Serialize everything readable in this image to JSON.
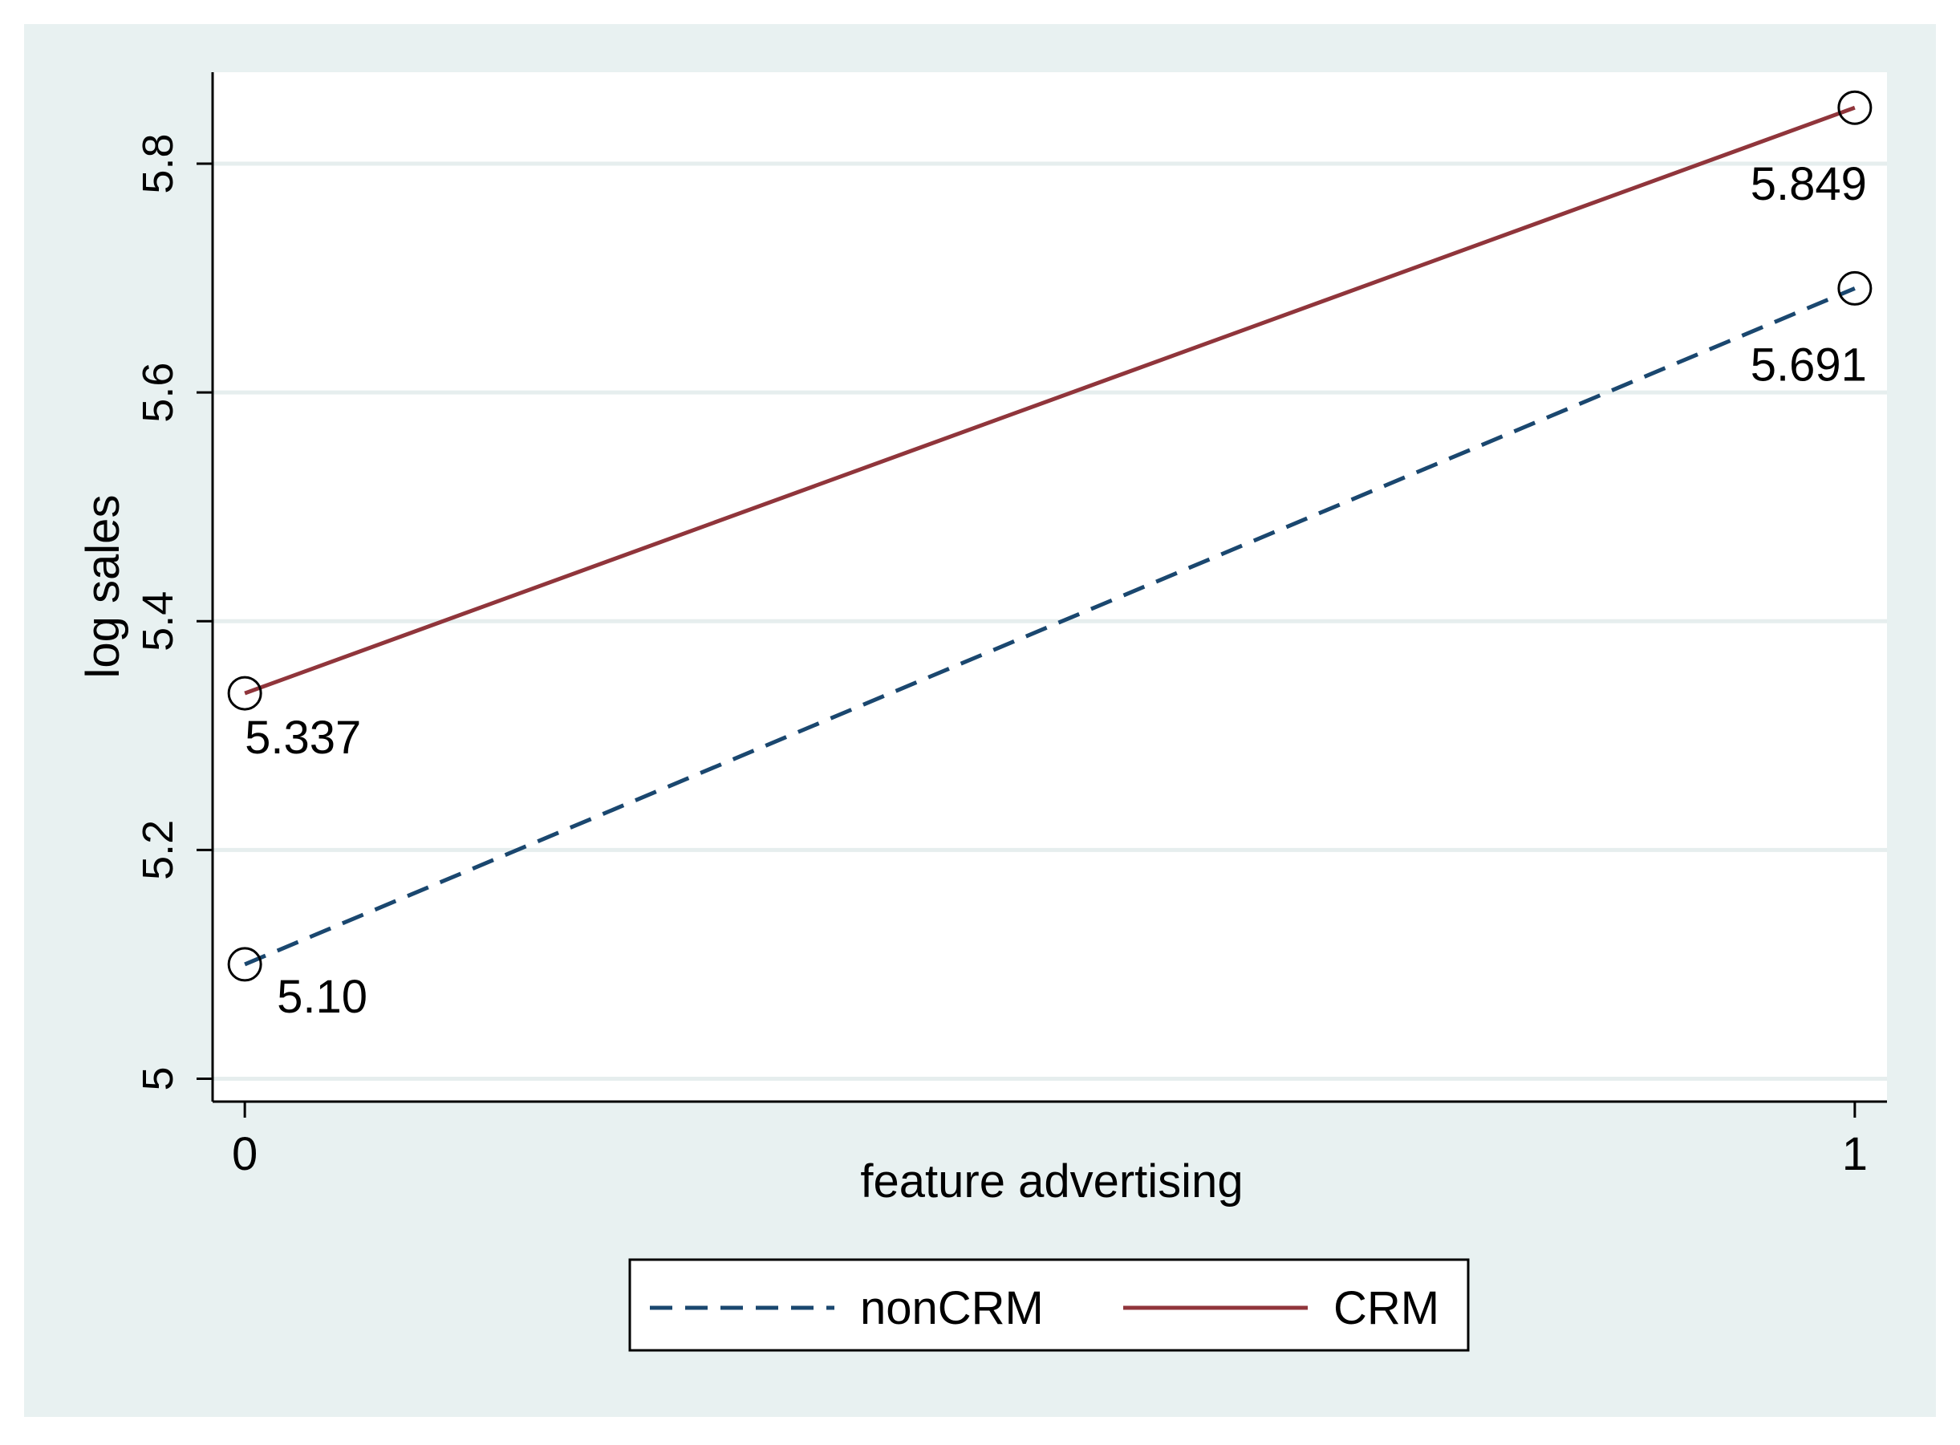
{
  "chart_data": {
    "type": "line",
    "title": "",
    "xlabel": "feature advertising",
    "ylabel": "log sales",
    "x": [
      0,
      1
    ],
    "xlim": [
      -0.02,
      1.02
    ],
    "ylim": [
      4.98,
      5.88
    ],
    "x_ticks": [
      {
        "value": 0,
        "label": "0"
      },
      {
        "value": 1,
        "label": "1"
      }
    ],
    "y_ticks": [
      {
        "value": 5.0,
        "label": "5"
      },
      {
        "value": 5.2,
        "label": "5.2"
      },
      {
        "value": 5.4,
        "label": "5.4"
      },
      {
        "value": 5.6,
        "label": "5.6"
      },
      {
        "value": 5.8,
        "label": "5.8"
      }
    ],
    "grid": true,
    "legend_position": "bottom",
    "series": [
      {
        "name": "nonCRM",
        "style": "dashed",
        "color": "#1a476f",
        "values": [
          5.1,
          5.691
        ],
        "labels": [
          "5.10",
          "5.691"
        ]
      },
      {
        "name": "CRM",
        "style": "solid",
        "color": "#90353b",
        "values": [
          5.337,
          5.849
        ],
        "labels": [
          "5.337",
          "5.849"
        ]
      }
    ],
    "colors": {
      "outer_background": "#e8f1f1",
      "plot_background": "#ffffff",
      "grid": "#e6eeee",
      "axis": "#000000"
    }
  }
}
